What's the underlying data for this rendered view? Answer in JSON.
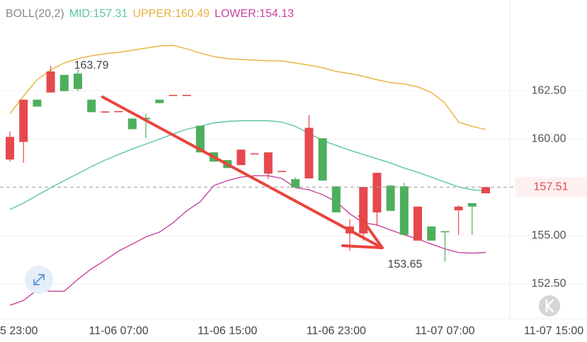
{
  "chart_data": {
    "type": "candlestick",
    "indicator": "BOLL(20,2)",
    "categories": [
      "5 23:00",
      null,
      null,
      null,
      null,
      null,
      null,
      null,
      "11-06 07:00",
      null,
      null,
      null,
      null,
      null,
      null,
      null,
      "11-06 15:00",
      null,
      null,
      null,
      null,
      null,
      null,
      null,
      "11-06 23:00",
      null,
      null,
      null,
      null,
      null,
      null,
      null,
      "11-07 07:00",
      null,
      null,
      null,
      null,
      null,
      null,
      null,
      "11-07 15:00"
    ],
    "open": [
      158.94,
      159.85,
      162.04,
      162.41,
      163.32,
      163.39,
      162.04,
      161.4,
      161.42,
      161.06,
      161.1,
      162.04,
      162.26,
      162.26,
      160.69,
      159.31,
      158.91,
      158.65,
      159.23,
      158.21,
      158.32,
      157.92,
      157.96,
      160.04,
      157.55,
      155.11,
      155.11,
      156.2,
      157.59,
      157.55,
      154.74,
      155.47,
      155.2,
      156.31,
      156.68,
      157.19,
      null,
      null,
      null,
      null,
      null
    ],
    "high": [
      160.4,
      162.04,
      162.04,
      163.79,
      163.32,
      163.6,
      162.04,
      161.4,
      161.42,
      161.06,
      161.31,
      162.04,
      162.26,
      162.26,
      160.69,
      159.31,
      158.91,
      159.45,
      159.23,
      159.31,
      158.32,
      158.03,
      161.24,
      160.04,
      157.55,
      155.84,
      157.52,
      158.25,
      157.59,
      157.74,
      156.5,
      155.47,
      155.2,
      156.57,
      156.68,
      157.52,
      null,
      null,
      null,
      null,
      null
    ],
    "low": [
      158.83,
      158.76,
      161.68,
      162.41,
      162.48,
      162.48,
      161.39,
      161.4,
      161.42,
      160.51,
      160.04,
      161.86,
      162.26,
      162.26,
      159.31,
      158.83,
      158.5,
      158.65,
      159.23,
      157.92,
      158.32,
      157.48,
      157.96,
      157.85,
      156.2,
      154.2,
      154.74,
      155.5,
      156.28,
      155.04,
      154.74,
      154.74,
      153.65,
      155.04,
      155.04,
      157.19,
      null,
      null,
      null,
      null,
      null
    ],
    "close": [
      160.11,
      162.04,
      161.68,
      163.5,
      162.48,
      162.59,
      161.39,
      161.4,
      161.42,
      160.51,
      161.02,
      161.86,
      162.26,
      162.26,
      159.31,
      158.83,
      158.5,
      159.45,
      159.23,
      159.31,
      158.32,
      157.48,
      160.58,
      157.85,
      156.2,
      155.47,
      157.52,
      158.25,
      156.28,
      155.04,
      156.5,
      154.74,
      155.18,
      156.5,
      156.5,
      157.51,
      null,
      null,
      null,
      null,
      null
    ],
    "up_color": "#e5484d",
    "down_color": "#4caf5c",
    "series": [
      {
        "name": "MID:157.31",
        "color": "#5cc5a7",
        "values": [
          156.35,
          156.68,
          157.08,
          157.48,
          157.85,
          158.21,
          158.58,
          158.91,
          159.2,
          159.49,
          159.74,
          160.0,
          160.26,
          160.51,
          160.66,
          160.84,
          160.91,
          160.95,
          160.95,
          160.95,
          160.88,
          160.66,
          160.29,
          159.93,
          159.67,
          159.42,
          159.2,
          158.98,
          158.76,
          158.5,
          158.28,
          158.03,
          157.77,
          157.52,
          157.37,
          157.31,
          null,
          null,
          null,
          null,
          null
        ]
      },
      {
        "name": "UPPER:160.49",
        "color": "#e6b13a",
        "values": [
          161.31,
          162.23,
          163.07,
          163.58,
          163.94,
          164.16,
          164.31,
          164.42,
          164.49,
          164.6,
          164.71,
          164.82,
          164.85,
          164.67,
          164.45,
          164.27,
          164.16,
          164.12,
          164.09,
          164.05,
          164.05,
          163.94,
          163.83,
          163.69,
          163.5,
          163.39,
          163.25,
          163.07,
          162.92,
          162.85,
          162.7,
          162.41,
          161.86,
          160.88,
          160.66,
          160.49,
          null,
          null,
          null,
          null,
          null
        ]
      },
      {
        "name": "LOWER:154.13",
        "color": "#c7449f",
        "values": [
          151.39,
          151.64,
          152.19,
          152.12,
          152.12,
          152.74,
          153.28,
          153.72,
          154.2,
          154.56,
          154.93,
          155.18,
          155.66,
          156.28,
          156.75,
          157.59,
          157.85,
          158.03,
          158.1,
          158.1,
          157.96,
          157.48,
          157.37,
          157.12,
          156.75,
          156.13,
          155.66,
          155.55,
          155.29,
          155.04,
          154.82,
          154.56,
          154.31,
          154.12,
          154.09,
          154.13,
          null,
          null,
          null,
          null,
          null
        ]
      }
    ],
    "ylim": [
      150.7,
      167.2
    ],
    "yticks": [
      {
        "value": 152.5,
        "label": "152.50"
      },
      {
        "value": 155,
        "label": "155.00"
      },
      {
        "value": 160,
        "label": "160.00"
      },
      {
        "value": 162.5,
        "label": "162.50"
      }
    ],
    "grid": true,
    "annotations": {
      "high": 163.79,
      "low": 153.65,
      "last": 157.51
    }
  }
}
